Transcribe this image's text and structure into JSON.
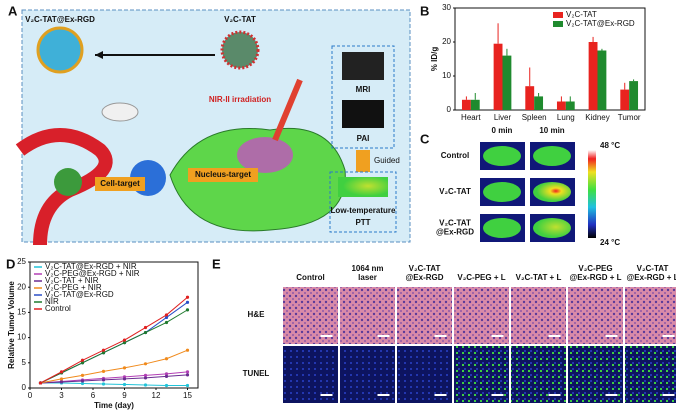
{
  "panel_labels": [
    "A",
    "B",
    "C",
    "D",
    "E"
  ],
  "panel_a": {
    "nanoparticle_labels": [
      "V₂C-TAT@Ex-RGD",
      "V₂C-TAT"
    ],
    "irradiation": "NIR-II irradiation",
    "imaging": [
      "MRI",
      "PAI"
    ],
    "guided": "Guided",
    "ptt": [
      "Low-temperature",
      "PTT"
    ],
    "cell_target": "Cell-target",
    "nucleus_target": "Nucleus-target"
  },
  "chart_data": [
    {
      "type": "bar",
      "ylabel": "% ID/g",
      "categories": [
        "Heart",
        "Liver",
        "Spleen",
        "Lung",
        "Kidney",
        "Tumor"
      ],
      "series": [
        {
          "name": "V₂C-TAT",
          "color": "#e8231f",
          "values": [
            3,
            19.5,
            7,
            2.5,
            20,
            6
          ],
          "errors": [
            1,
            6,
            5.5,
            1.5,
            1.5,
            2
          ]
        },
        {
          "name": "V₂C-TAT@Ex-RGD",
          "color": "#1f8a2e",
          "values": [
            3,
            16,
            4,
            2.5,
            17.5,
            8.5
          ],
          "errors": [
            2,
            2,
            1,
            1.5,
            0.5,
            0.5
          ]
        }
      ],
      "ylim": [
        0,
        30
      ],
      "yticks": [
        0,
        10,
        20,
        30
      ],
      "legend": "upper right"
    },
    {
      "type": "line",
      "xlabel": "Time (day)",
      "ylabel": "Relative Tumor Volume",
      "x": [
        1,
        3,
        5,
        7,
        9,
        11,
        13,
        15
      ],
      "series": [
        {
          "name": "V₂C-TAT@Ex-RGD + NIR",
          "color": "#22c3d8",
          "values": [
            1,
            1,
            0.9,
            0.8,
            0.7,
            0.6,
            0.5,
            0.5
          ]
        },
        {
          "name": "V₂C-PEG@Ex-RGD + NIR",
          "color": "#b23fb5",
          "values": [
            1,
            1.3,
            1.6,
            1.9,
            2.2,
            2.5,
            2.8,
            3.2
          ]
        },
        {
          "name": "V₂C-TAT + NIR",
          "color": "#6a2c91",
          "values": [
            1,
            1.2,
            1.4,
            1.6,
            1.8,
            2,
            2.3,
            2.6
          ]
        },
        {
          "name": "V₂C-PEG + NIR",
          "color": "#f08a1c",
          "values": [
            1,
            1.8,
            2.5,
            3.3,
            4,
            4.8,
            5.8,
            7.5
          ]
        },
        {
          "name": "V₂C-TAT@Ex-RGD",
          "color": "#2b4fc7",
          "values": [
            1,
            3,
            5,
            7,
            9,
            11,
            14,
            17
          ]
        },
        {
          "name": "NIR",
          "color": "#1f7a2e",
          "values": [
            1,
            3,
            5,
            7,
            9,
            11,
            13,
            15.5
          ]
        },
        {
          "name": "Control",
          "color": "#e02020",
          "values": [
            1,
            3.2,
            5.5,
            7.5,
            9.5,
            12,
            14.5,
            18
          ]
        }
      ],
      "xlim": [
        0,
        16
      ],
      "xticks": [
        0,
        3,
        6,
        9,
        12,
        15
      ],
      "ylim": [
        0,
        25
      ],
      "yticks": [
        0,
        5,
        10,
        15,
        20,
        25
      ],
      "legend": "upper left"
    }
  ],
  "panel_c": {
    "columns": [
      "0 min",
      "10 min"
    ],
    "rows": [
      [
        "Control"
      ],
      [
        "V₂C-TAT"
      ],
      [
        "V₂C-TAT",
        "@Ex-RGD"
      ]
    ],
    "scale": [
      "48 °C",
      "24 °C"
    ]
  },
  "panel_e": {
    "columns": [
      [
        "Control"
      ],
      [
        "1064 nm",
        "laser"
      ],
      [
        "V₂C-TAT",
        "@Ex-RGD"
      ],
      [
        "V₂C-PEG + L"
      ],
      [
        "V₂C-TAT + L"
      ],
      [
        "V₂C-PEG",
        "@Ex-RGD + L"
      ],
      [
        "V₂C-TAT",
        "@Ex-RGD + L"
      ]
    ],
    "rows": [
      "H&E",
      "TUNEL"
    ]
  }
}
